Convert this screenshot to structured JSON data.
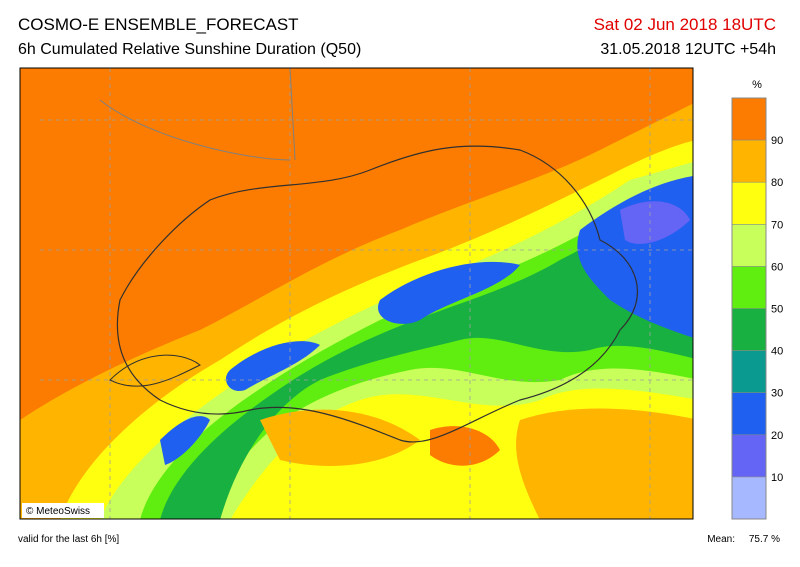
{
  "header": {
    "title": "COSMO-E ENSEMBLE_FORECAST",
    "subtitle": "6h Cumulated Relative Sunshine Duration (Q50)",
    "valid_time": "Sat 02 Jun 2018 18UTC",
    "run": "31.05.2018 12UTC +54h"
  },
  "colorbar": {
    "unit": "%",
    "lim": [
      0,
      100
    ],
    "ticks": [
      10,
      20,
      30,
      40,
      50,
      60,
      70,
      80,
      90
    ],
    "colors": [
      "#a6b8ff",
      "#6464f5",
      "#2060f0",
      "#0a9a90",
      "#18b040",
      "#60ee10",
      "#c8ff5a",
      "#ffff10",
      "#ffb400",
      "#fb7c00"
    ]
  },
  "footer": {
    "note": "valid for the last 6h [%]",
    "mean_label": "Mean:",
    "mean": "75.7 %",
    "copyright": "© MeteoSwiss"
  }
}
